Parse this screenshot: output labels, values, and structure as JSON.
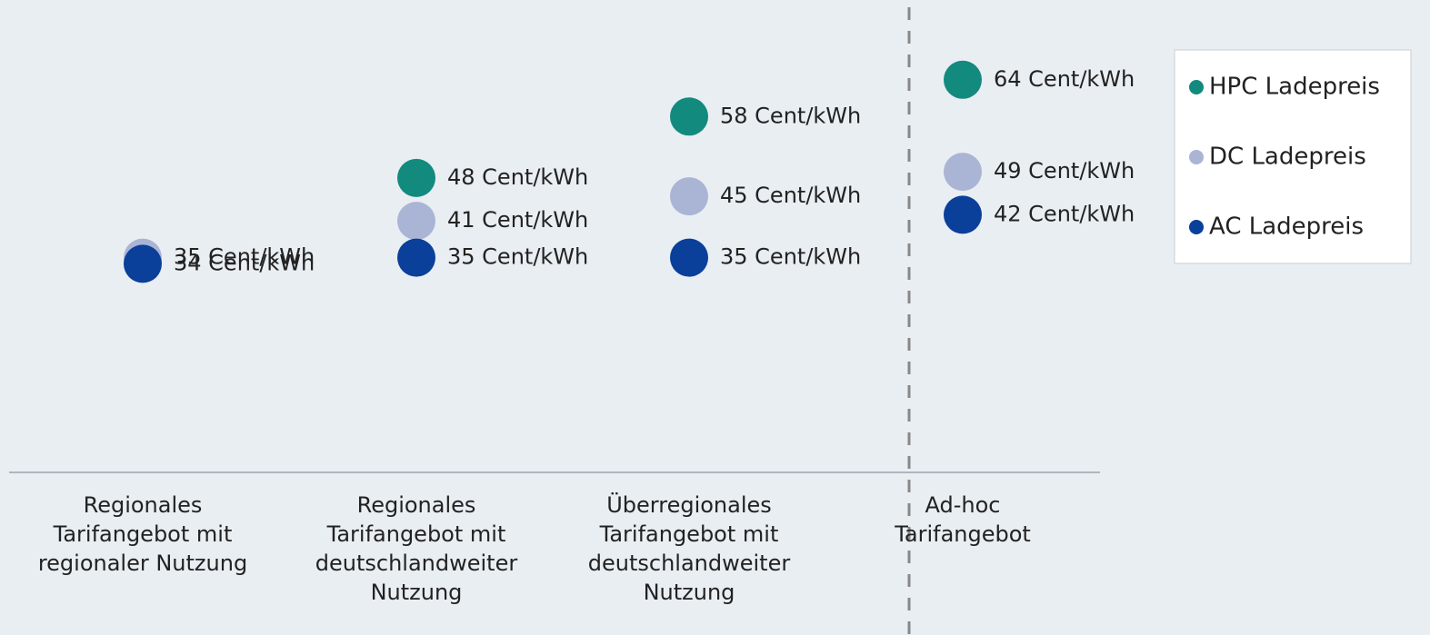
{
  "chart_data": {
    "type": "dot",
    "categories": [
      "Regionales\nTarifangebot mit\nregionaler Nutzung",
      "Regionales\nTarifangebot mit\ndeutschlandweiter\nNutzung",
      "Überregionales\nTarifangebot mit\ndeutschlandweiter\nNutzung",
      "Ad-hoc\nTarifangebot"
    ],
    "series": [
      {
        "name": "HPC Ladepreis",
        "color": "#138a7e",
        "values": [
          null,
          48,
          58,
          64
        ],
        "value_labels": [
          null,
          "48 Cent/kWh",
          "58 Cent/kWh",
          "64 Cent/kWh"
        ]
      },
      {
        "name": "DC Ladepreis",
        "color": "#aab4d4",
        "values": [
          35,
          41,
          45,
          49
        ],
        "value_labels": [
          "35 Cent/kWh",
          "41 Cent/kWh",
          "45 Cent/kWh",
          "49 Cent/kWh"
        ]
      },
      {
        "name": "AC Ladepreis",
        "color": "#0a3f9a",
        "values": [
          34,
          35,
          35,
          42
        ],
        "value_labels": [
          "34 Cent/kWh",
          "35 Cent/kWh",
          "35 Cent/kWh",
          "42 Cent/kWh"
        ]
      }
    ],
    "ylim": [
      0,
      77
    ],
    "legend": "upper right"
  }
}
